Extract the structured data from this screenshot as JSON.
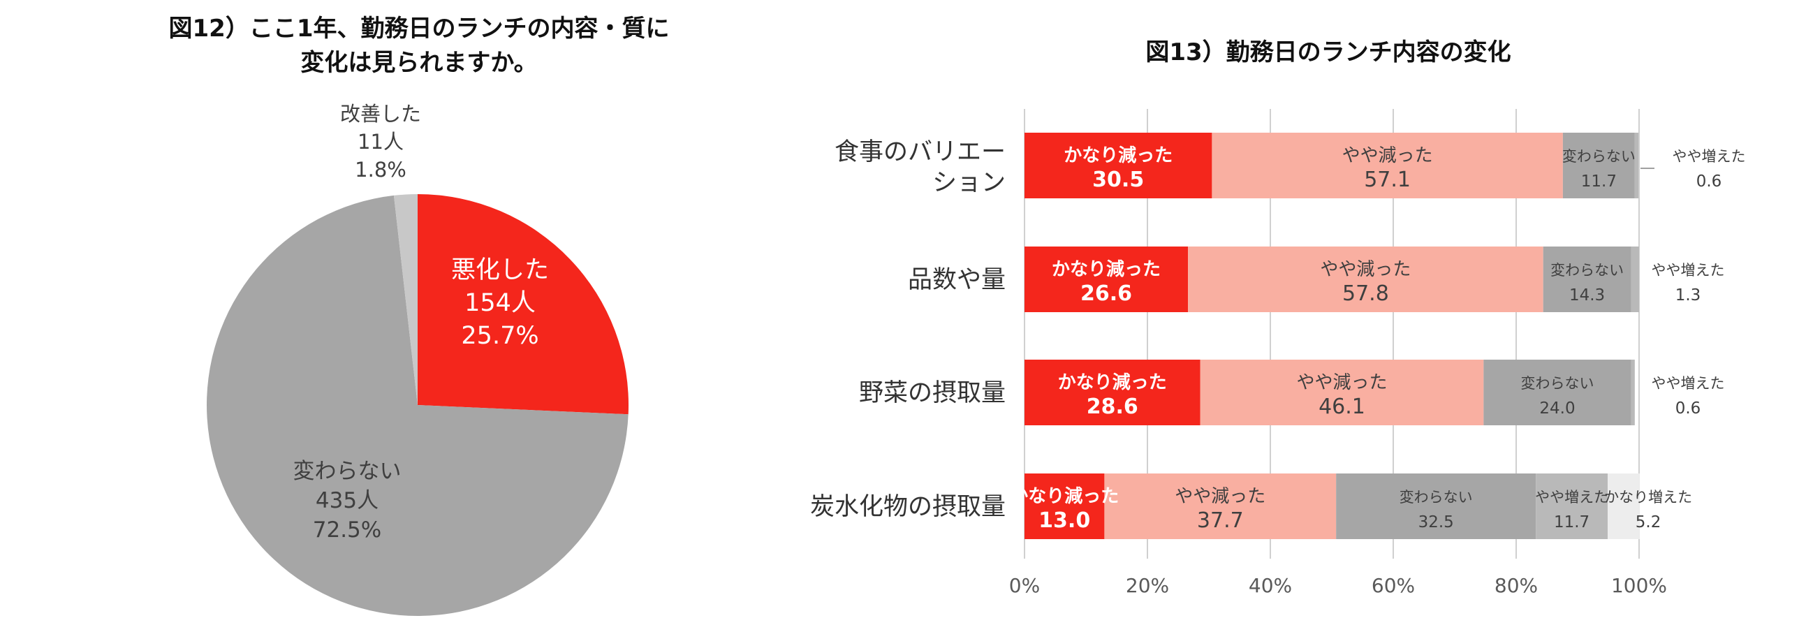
{
  "chart_data": [
    {
      "type": "pie",
      "title_lines": [
        "図12）ここ1年、勤務日のランチの内容・質に",
        "変化は見られますか。"
      ],
      "slices": [
        {
          "name": "悪化した",
          "count_label": "154人",
          "percent_label": "25.7%",
          "value": 25.7,
          "color": "#f4261c",
          "text_color": "#ffffff"
        },
        {
          "name": "変わらない",
          "count_label": "435人",
          "percent_label": "72.5%",
          "value": 72.5,
          "color": "#a6a6a6",
          "text_color": "#3f3f3f"
        },
        {
          "name": "改善した",
          "count_label": "11人",
          "percent_label": "1.8%",
          "value": 1.8,
          "color": "#c8c8c8",
          "text_color": "#3f3f3f"
        }
      ]
    },
    {
      "type": "bar",
      "stacked": true,
      "orientation": "horizontal",
      "title": "図13）勤務日のランチ内容の変化",
      "categories": [
        "食事のバリエーション",
        "品数や量",
        "野菜の摂取量",
        "炭水化物の摂取量"
      ],
      "category_lines": [
        [
          "食事のバリエー",
          "ション"
        ],
        [
          "品数や量"
        ],
        [
          "野菜の摂取量"
        ],
        [
          "炭水化物の摂取量"
        ]
      ],
      "series_names": [
        "かなり減った",
        "やや減った",
        "変わらない",
        "やや増えた",
        "かなり増えた"
      ],
      "series_colors": [
        "#f4261c",
        "#f9afa1",
        "#a6a6a6",
        "#b9b9b9",
        "#ededed"
      ],
      "rows": [
        [
          "30.5",
          "57.1",
          "11.7",
          "0.6"
        ],
        [
          "26.6",
          "57.8",
          "14.3",
          "1.3"
        ],
        [
          "28.6",
          "46.1",
          "24.0",
          "0.6"
        ],
        [
          "13.0",
          "37.7",
          "32.5",
          "11.7",
          "5.2"
        ]
      ],
      "xlim": [
        0,
        100
      ],
      "ticks": [
        "0%",
        "20%",
        "40%",
        "60%",
        "80%",
        "100%"
      ],
      "grid": true
    }
  ]
}
